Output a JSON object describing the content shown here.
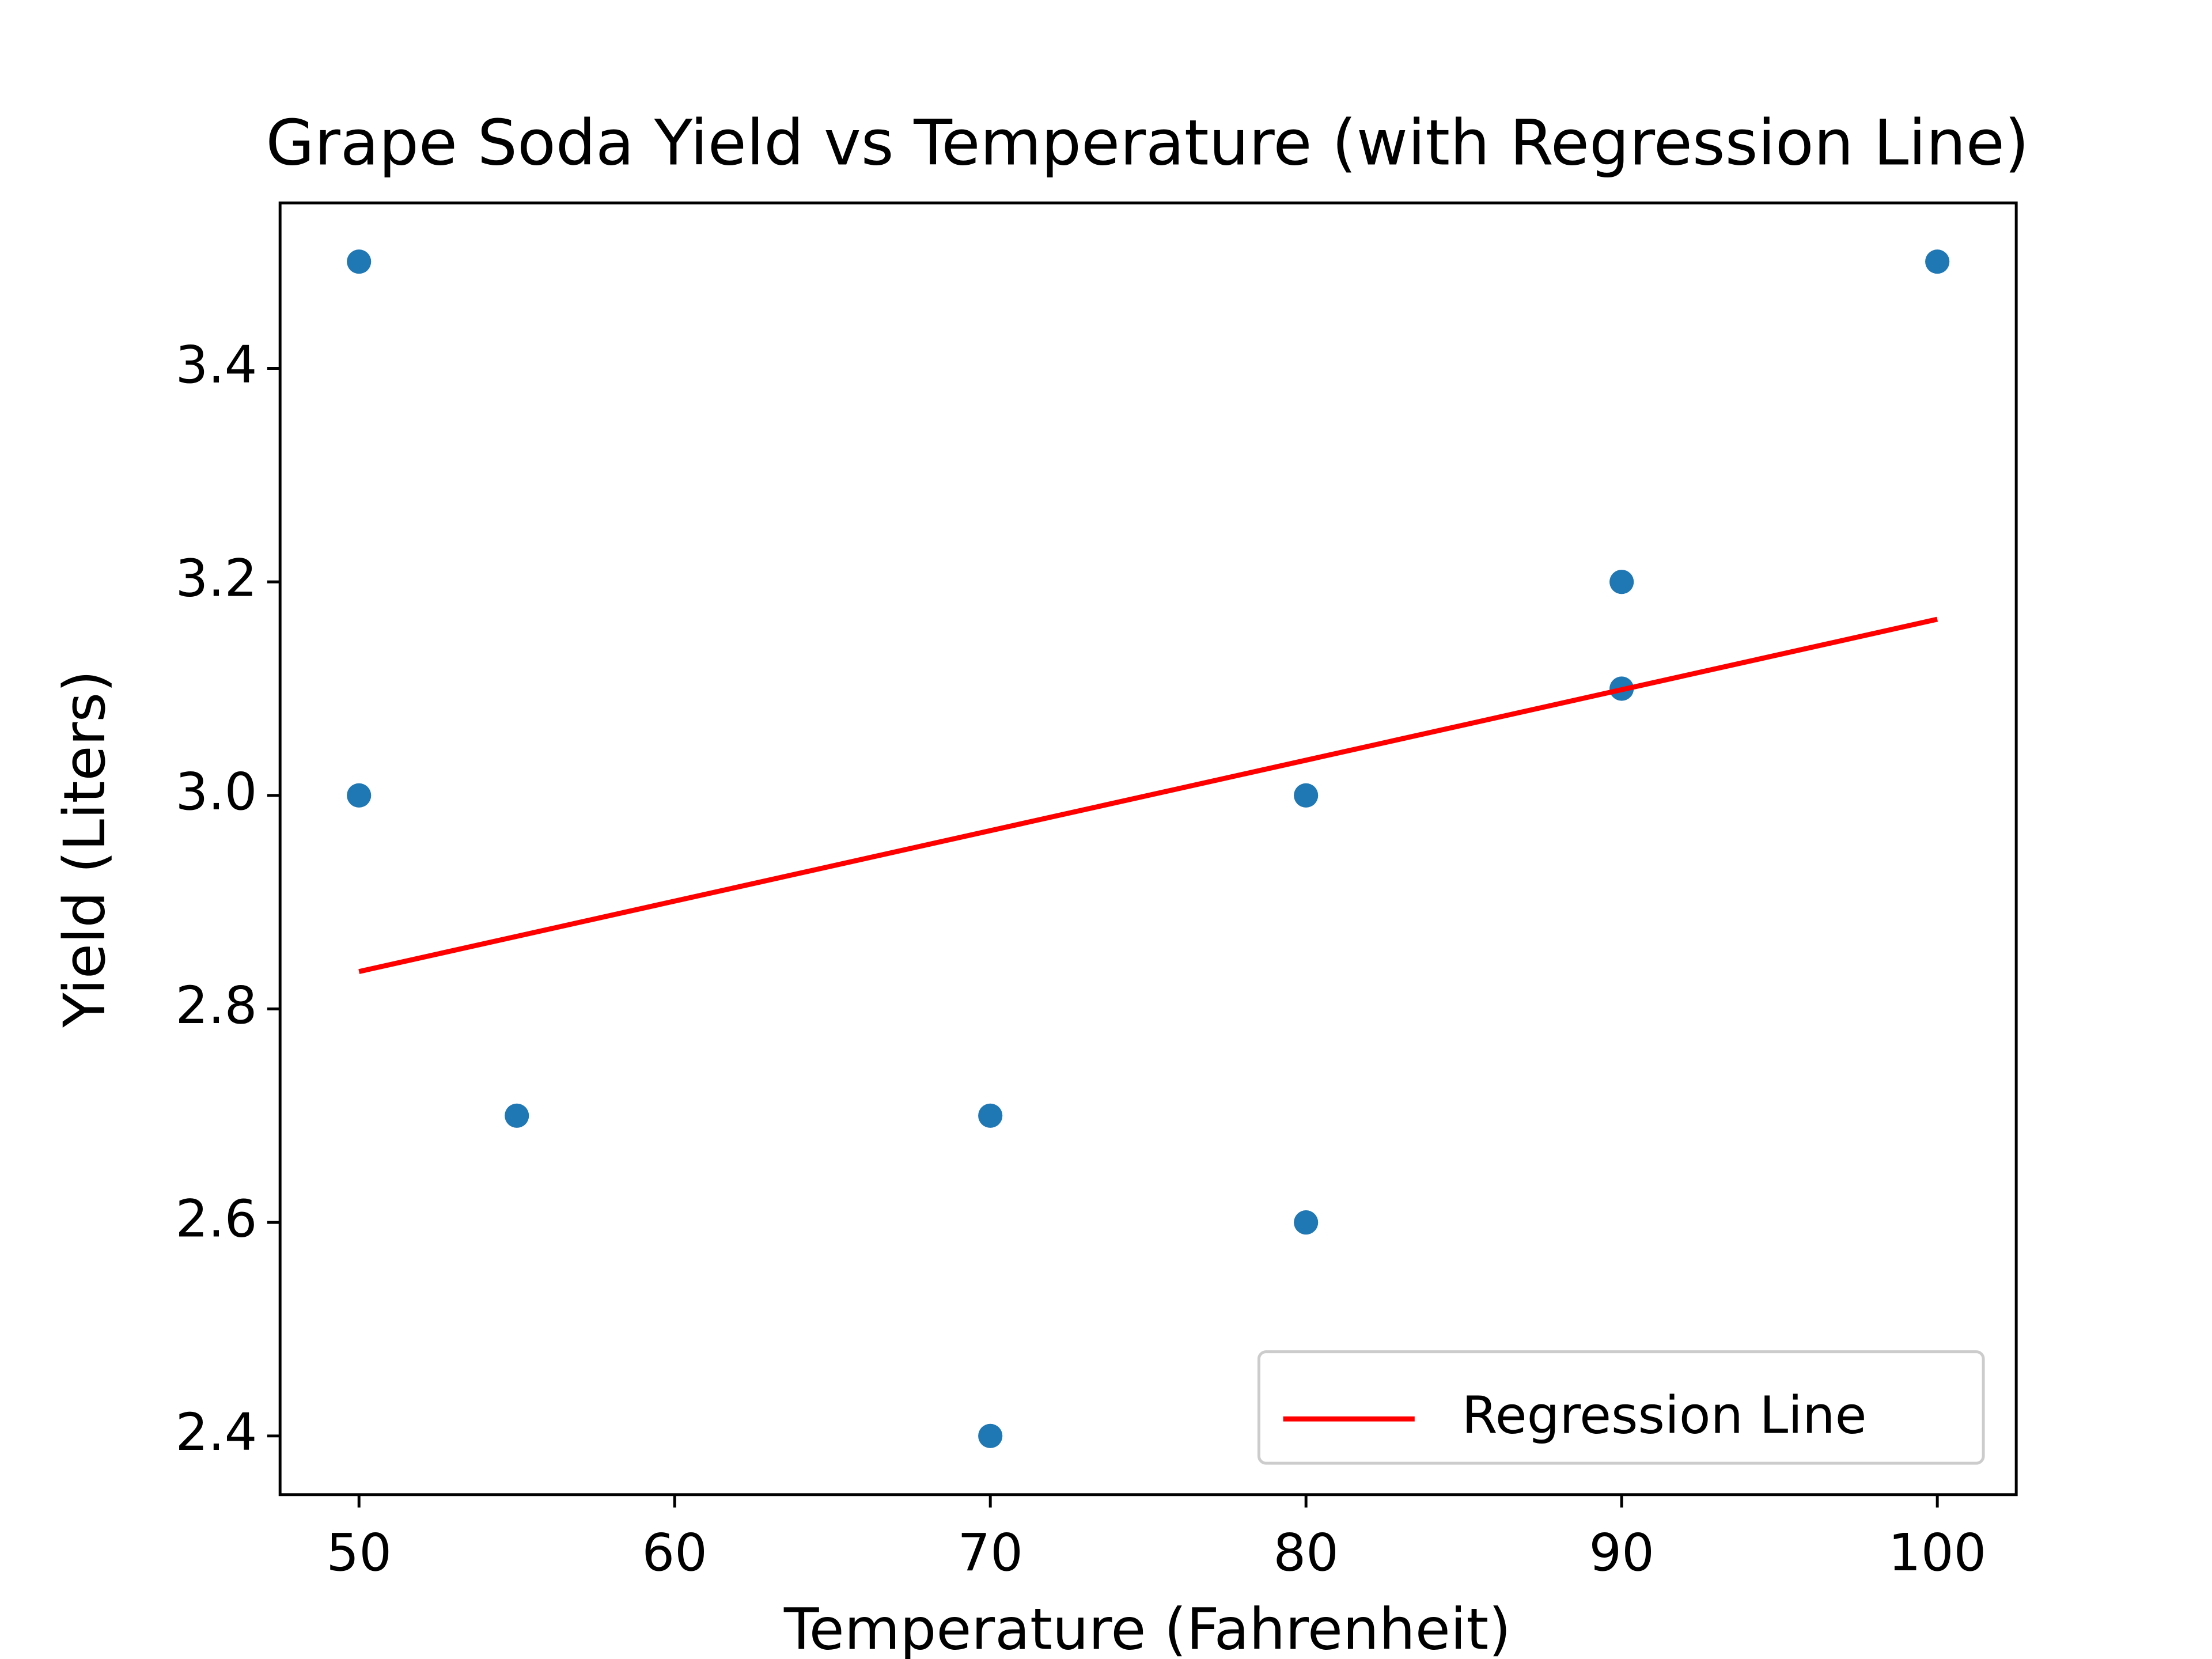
{
  "chart_data": {
    "type": "scatter",
    "title": "Grape Soda Yield vs Temperature (with Regression Line)",
    "xlabel": "Temperature (Fahrenheit)",
    "ylabel": "Yield (Liters)",
    "xlim": [
      47.5,
      102.5
    ],
    "ylim": [
      2.345,
      3.555
    ],
    "xticks": [
      50,
      60,
      70,
      80,
      90,
      100
    ],
    "yticks": [
      2.4,
      2.6,
      2.8,
      {
        "value": 3,
        "label": "3.0"
      },
      3.2,
      3.4
    ],
    "legend": "lower right",
    "series": [
      {
        "type": "scatter",
        "color": "#1f77b4",
        "x": [
          50,
          50,
          55,
          70,
          70,
          80,
          80,
          90,
          90,
          100
        ],
        "values": [
          3.5,
          3.0,
          2.7,
          2.7,
          2.4,
          3.0,
          2.6,
          3.2,
          3.1,
          3.5
        ]
      },
      {
        "type": "line",
        "name": "Regression Line",
        "color": "#ff0000",
        "x": [
          50,
          100
        ],
        "values": [
          2.835,
          3.165
        ]
      }
    ]
  }
}
